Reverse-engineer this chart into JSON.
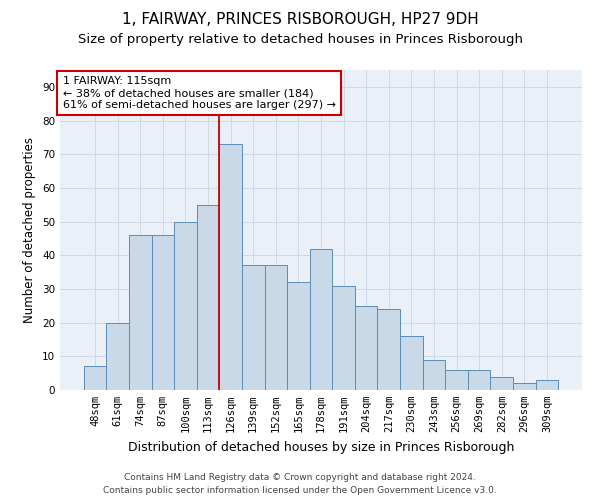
{
  "title": "1, FAIRWAY, PRINCES RISBOROUGH, HP27 9DH",
  "subtitle": "Size of property relative to detached houses in Princes Risborough",
  "xlabel": "Distribution of detached houses by size in Princes Risborough",
  "ylabel": "Number of detached properties",
  "categories": [
    "48sqm",
    "61sqm",
    "74sqm",
    "87sqm",
    "100sqm",
    "113sqm",
    "126sqm",
    "139sqm",
    "152sqm",
    "165sqm",
    "178sqm",
    "191sqm",
    "204sqm",
    "217sqm",
    "230sqm",
    "243sqm",
    "256sqm",
    "269sqm",
    "282sqm",
    "296sqm",
    "309sqm"
  ],
  "values": [
    7,
    20,
    46,
    46,
    50,
    55,
    73,
    37,
    37,
    32,
    42,
    31,
    25,
    24,
    16,
    9,
    6,
    6,
    4,
    2,
    3
  ],
  "bar_color": "#c9d9e8",
  "bar_edge_color": "#5b8db8",
  "vline_index": 5.5,
  "vline_color": "#cc0000",
  "annotation_text": "1 FAIRWAY: 115sqm\n← 38% of detached houses are smaller (184)\n61% of semi-detached houses are larger (297) →",
  "annotation_box_color": "#ffffff",
  "annotation_box_edge": "#cc0000",
  "ylim": [
    0,
    95
  ],
  "yticks": [
    0,
    10,
    20,
    30,
    40,
    50,
    60,
    70,
    80,
    90
  ],
  "grid_color": "#d0d8e8",
  "background_color": "#eaf0f8",
  "footer1": "Contains HM Land Registry data © Crown copyright and database right 2024.",
  "footer2": "Contains public sector information licensed under the Open Government Licence v3.0.",
  "title_fontsize": 11,
  "subtitle_fontsize": 9.5,
  "xlabel_fontsize": 9,
  "ylabel_fontsize": 8.5,
  "tick_fontsize": 7.5,
  "annotation_fontsize": 8,
  "footer_fontsize": 6.5
}
